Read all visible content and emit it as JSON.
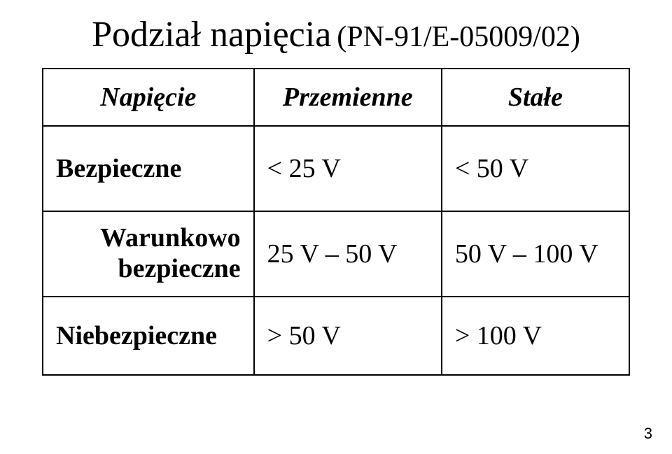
{
  "title": {
    "main": "Podział napięcia",
    "sub": "(PN-91/E-05009/02)"
  },
  "table": {
    "header": {
      "col1": "Napięcie",
      "col2": "Przemienne",
      "col3": "Stałe"
    },
    "rows": [
      {
        "label": "Bezpieczne",
        "ac": "< 25 V",
        "dc": "< 50 V"
      },
      {
        "label_line1": "Warunkowo",
        "label_line2": "bezpieczne",
        "ac": "25 V – 50 V",
        "dc": "50 V – 100 V"
      },
      {
        "label": "Niebezpieczne",
        "ac": "> 50 V",
        "dc": "> 100 V"
      }
    ]
  },
  "page_number": "3"
}
